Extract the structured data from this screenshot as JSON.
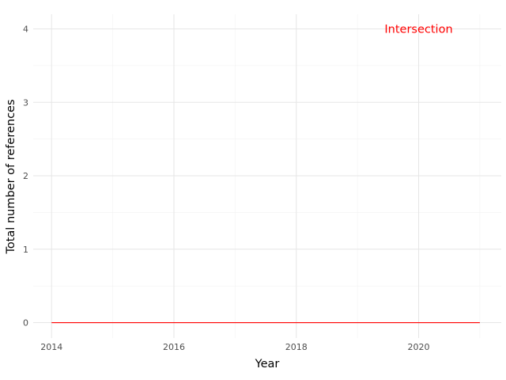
{
  "chart_data": {
    "type": "line",
    "xlabel": "Year",
    "ylabel": "Total number of references",
    "xlim": [
      2013.7,
      2021.35
    ],
    "ylim": [
      -0.21,
      4.2
    ],
    "x_major_ticks": [
      2014,
      2016,
      2018,
      2020
    ],
    "x_tick_labels": [
      "2014",
      "2016",
      "2018",
      "2020"
    ],
    "x_minor_ticks": [
      2015,
      2017,
      2019,
      2021
    ],
    "y_major_ticks": [
      0,
      1,
      2,
      3,
      4
    ],
    "y_tick_labels": [
      "0",
      "1",
      "2",
      "3",
      "4"
    ],
    "y_minor_ticks": [
      0.5,
      1.5,
      2.5,
      3.5
    ],
    "grid": true,
    "series": [
      {
        "name": "Intersection",
        "color": "#ff0000",
        "x": [
          2014,
          2015,
          2016,
          2017,
          2018,
          2019,
          2020,
          2021
        ],
        "y": [
          0,
          0,
          0,
          0,
          0,
          0,
          0,
          0
        ]
      }
    ],
    "annotations": [
      {
        "text": "Intersection",
        "x": 2020,
        "y": 4,
        "color": "#ff0000"
      }
    ]
  }
}
